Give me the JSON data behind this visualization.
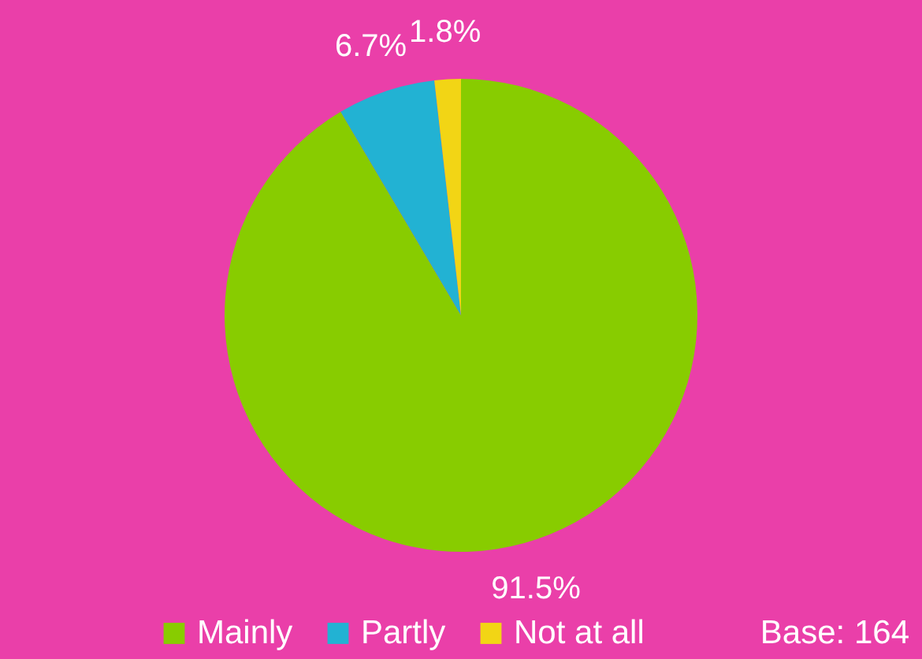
{
  "chart_data": {
    "type": "pie",
    "categories": [
      "Mainly",
      "Partly",
      "Not at all"
    ],
    "values": [
      91.5,
      6.7,
      1.8
    ],
    "colors": [
      "#88cc00",
      "#22b2d3",
      "#f2d515"
    ],
    "value_labels": [
      "91.5%",
      "6.7%",
      "1.8%"
    ],
    "legend": "bottom",
    "annotations": [
      "Base: 164"
    ]
  }
}
